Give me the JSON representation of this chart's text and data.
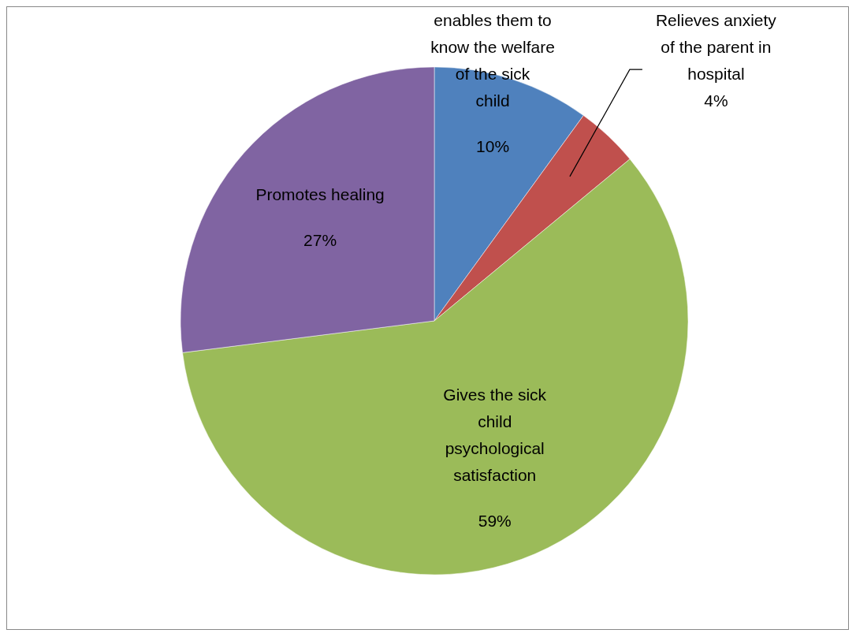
{
  "chart_data": {
    "type": "pie",
    "categories": [
      "enables them to know the welfare of the sick child",
      "Relieves anxiety of the parent in hospital",
      "Gives the sick child psychological satisfaction",
      "Promotes healing"
    ],
    "values": [
      10,
      4,
      59,
      27
    ],
    "colors": [
      "#4f81bd",
      "#c0504d",
      "#9bbb59",
      "#8064a2"
    ],
    "value_labels": [
      "10%",
      "4%",
      "59%",
      "27%"
    ]
  }
}
